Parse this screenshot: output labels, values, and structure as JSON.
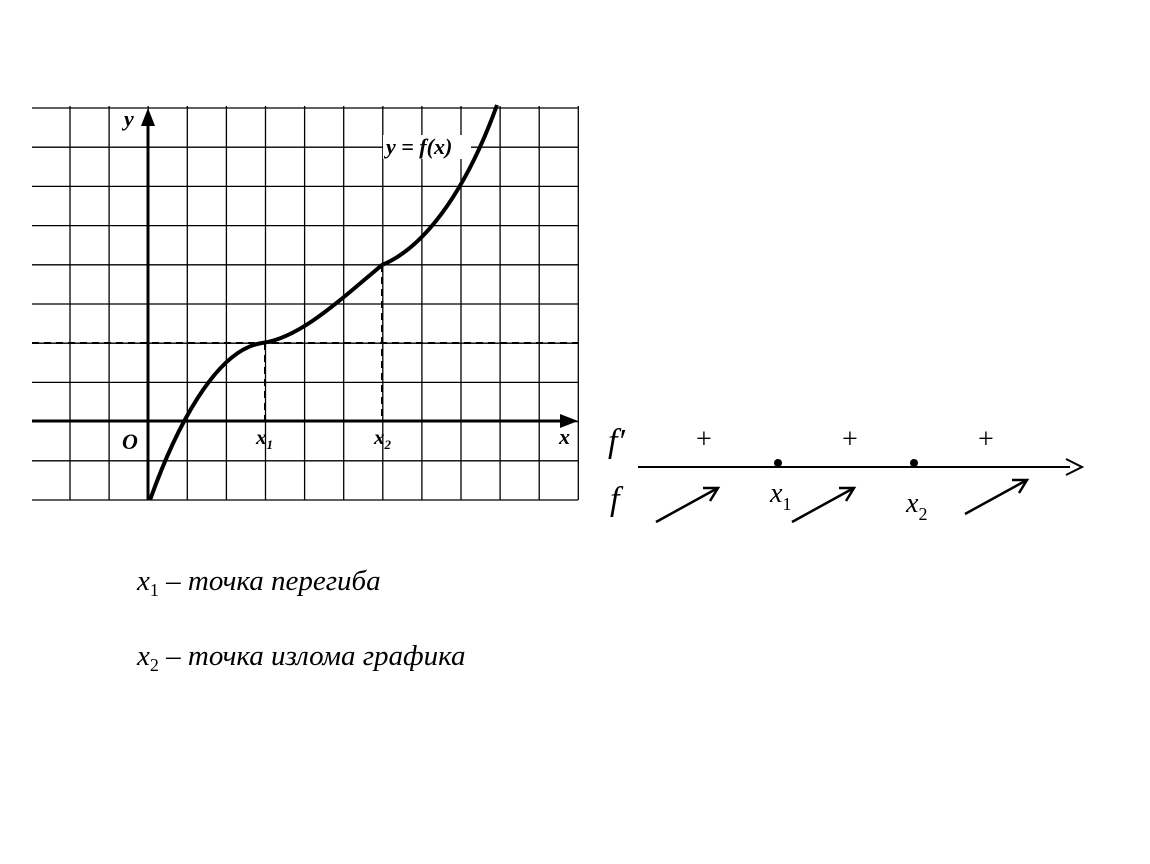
{
  "graph": {
    "y_axis_label": "y",
    "x_axis_label": "x",
    "origin_label": "O",
    "curve_label": "y = f(x)",
    "x1_label": {
      "base": "x",
      "sub": "1"
    },
    "x2_label": {
      "base": "x",
      "sub": "2"
    }
  },
  "sign_chart": {
    "derivative_label": "f′",
    "function_label": "f",
    "signs": [
      "+",
      "+",
      "+"
    ],
    "point1_label": {
      "base": "x",
      "sub": "1"
    },
    "point2_label": {
      "base": "x",
      "sub": "2"
    }
  },
  "notes": [
    {
      "var": "x",
      "sub": "1",
      "text": " – точка перегиба"
    },
    {
      "var": "x",
      "sub": "2",
      "text": " – точка излома графика"
    }
  ]
}
